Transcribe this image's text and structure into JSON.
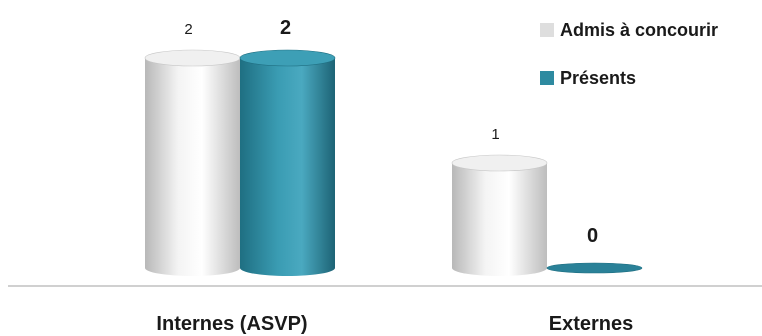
{
  "chart_data": {
    "type": "bar",
    "style": "3d-cylinder",
    "categories": [
      "Internes (ASVP)",
      "Externes"
    ],
    "series": [
      {
        "name": "Admis à concourir",
        "values": [
          2,
          1
        ],
        "color": "#dedede",
        "label_bold": false
      },
      {
        "name": "Présents",
        "values": [
          2,
          0
        ],
        "color": "#2e8aa0",
        "label_bold": true
      }
    ],
    "ylim": [
      0,
      2
    ],
    "grid": false,
    "legend": "top-right"
  }
}
